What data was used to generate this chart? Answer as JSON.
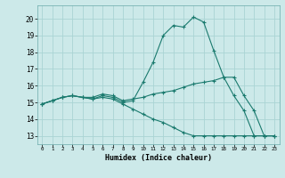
{
  "xlabel": "Humidex (Indice chaleur)",
  "ylabel": "",
  "bg_color": "#cce9e9",
  "grid_color": "#aad4d4",
  "line_color": "#1a7a6e",
  "xlim": [
    -0.5,
    23.5
  ],
  "ylim": [
    12.5,
    20.8
  ],
  "xticks": [
    0,
    1,
    2,
    3,
    4,
    5,
    6,
    7,
    8,
    9,
    10,
    11,
    12,
    13,
    14,
    15,
    16,
    17,
    18,
    19,
    20,
    21,
    22,
    23
  ],
  "yticks": [
    13,
    14,
    15,
    16,
    17,
    18,
    19,
    20
  ],
  "line1_x": [
    0,
    1,
    2,
    3,
    4,
    5,
    6,
    7,
    8,
    9,
    10,
    11,
    12,
    13,
    14,
    15,
    16,
    17,
    18,
    19,
    20,
    21,
    22,
    23
  ],
  "line1_y": [
    14.9,
    15.1,
    15.3,
    15.4,
    15.3,
    15.2,
    15.4,
    15.3,
    15.0,
    15.1,
    16.2,
    17.4,
    19.0,
    19.6,
    19.5,
    20.1,
    19.8,
    18.1,
    16.5,
    15.4,
    14.5,
    13.0,
    13.0,
    13.0
  ],
  "line2_x": [
    0,
    1,
    2,
    3,
    4,
    5,
    6,
    7,
    8,
    9,
    10,
    11,
    12,
    13,
    14,
    15,
    16,
    17,
    18,
    19,
    20,
    21,
    22,
    23
  ],
  "line2_y": [
    14.9,
    15.1,
    15.3,
    15.4,
    15.3,
    15.3,
    15.5,
    15.4,
    15.1,
    15.2,
    15.3,
    15.5,
    15.6,
    15.7,
    15.9,
    16.1,
    16.2,
    16.3,
    16.5,
    16.5,
    15.4,
    14.5,
    13.0,
    13.0
  ],
  "line3_x": [
    0,
    1,
    2,
    3,
    4,
    5,
    6,
    7,
    8,
    9,
    10,
    11,
    12,
    13,
    14,
    15,
    16,
    17,
    18,
    19,
    20,
    21,
    22,
    23
  ],
  "line3_y": [
    14.9,
    15.1,
    15.3,
    15.4,
    15.3,
    15.2,
    15.3,
    15.2,
    14.9,
    14.6,
    14.3,
    14.0,
    13.8,
    13.5,
    13.2,
    13.0,
    13.0,
    13.0,
    13.0,
    13.0,
    13.0,
    13.0,
    13.0,
    13.0
  ]
}
